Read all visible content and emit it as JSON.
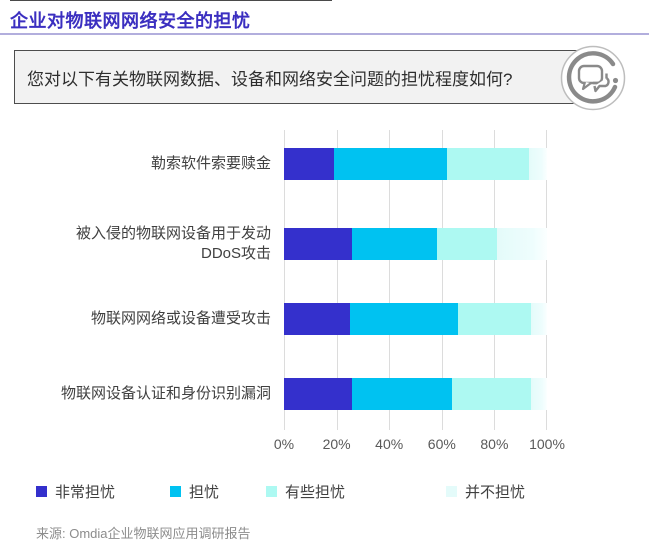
{
  "page": {
    "title": "企业对物联网网络安全的担忧",
    "question": "您对以下有关物联网数据、设备和网络安全问题的担忧程度如何?",
    "source": "来源: Omdia企业物联网应用调研报告"
  },
  "icons": {
    "question_icon": "speech-bubbles-in-circle-icon"
  },
  "colors": {
    "title": "#3b2fc0",
    "title_rule": "#b2aedd",
    "gridline": "#dcdcdc",
    "very_concerned": "#3430cc",
    "concerned": "#00c2f1",
    "somewhat_concerned": "#adf9f2",
    "not_concerned": "#e4fbfa"
  },
  "chart_data": {
    "type": "bar",
    "orientation": "horizontal",
    "stacked": true,
    "categories": [
      "勒索软件索要赎金",
      "被入侵的物联网设备用于发动\nDDoS攻击",
      "物联网网络或设备遭受攻击",
      "物联网设备认证和身份识别漏洞"
    ],
    "series": [
      {
        "name": "非常担忧",
        "color": "#3430cc",
        "values": [
          19,
          26,
          25,
          26
        ]
      },
      {
        "name": "担忧",
        "color": "#00c2f1",
        "values": [
          43,
          32,
          41,
          38
        ]
      },
      {
        "name": "有些担忧",
        "color": "#adf9f2",
        "values": [
          31,
          23,
          28,
          30
        ]
      },
      {
        "name": "并不担忧",
        "color": "#e4fbfa",
        "values": [
          7,
          19,
          6,
          6
        ]
      }
    ],
    "xticks": [
      "0%",
      "20%",
      "40%",
      "60%",
      "80%",
      "100%"
    ],
    "xlim": [
      0,
      100
    ],
    "grid": true,
    "legend_position": "bottom"
  }
}
